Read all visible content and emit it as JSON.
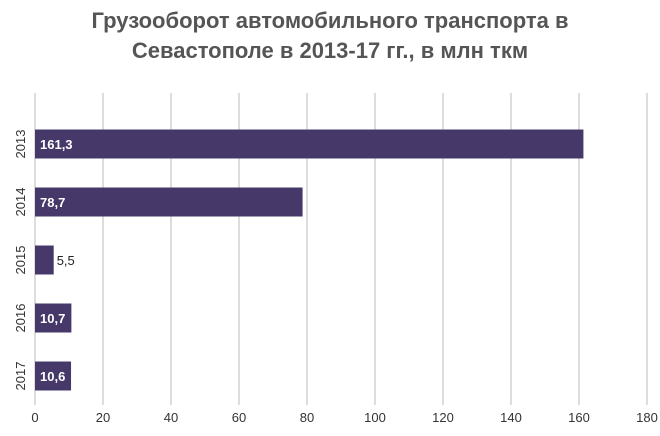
{
  "chart_data": {
    "type": "bar",
    "orientation": "horizontal",
    "title_lines": [
      "Грузооборот автомобильного транспорта в",
      "Севастополе в 2013-17 гг., в млн ткм"
    ],
    "categories": [
      "2013",
      "2014",
      "2015",
      "2016",
      "2017"
    ],
    "values": [
      161.3,
      78.7,
      5.5,
      10.7,
      10.6
    ],
    "value_labels": [
      "161,3",
      "78,7",
      "5,5",
      "10,7",
      "10,6"
    ],
    "xlim": [
      0,
      180
    ],
    "xticks": [
      0,
      20,
      40,
      60,
      80,
      100,
      120,
      140,
      160,
      180
    ],
    "grid": true,
    "bar_color": "#46396a",
    "grid_color": "#bbbbbb"
  }
}
